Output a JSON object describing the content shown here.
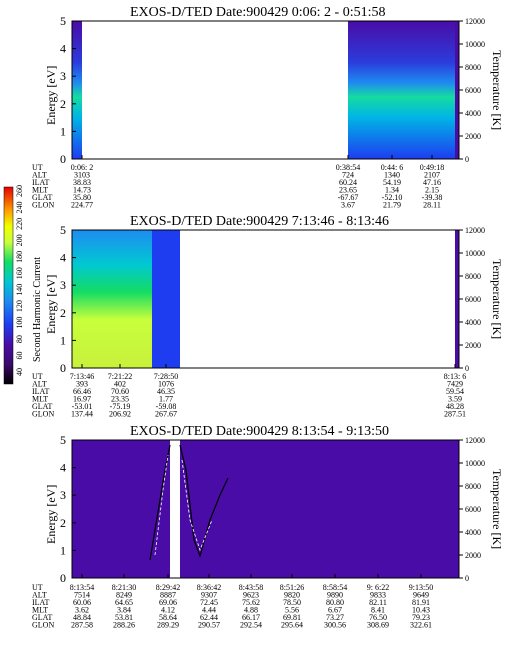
{
  "colors": {
    "background_purple": "#4a0ca6",
    "dark_purple": "#2b0a8c",
    "blue": "#1e3cf0",
    "cyan": "#00c8d2",
    "green": "#14dc64",
    "yellow_green": "#c8ff3c",
    "yellow": "#f0ff00"
  },
  "colorbar": {
    "label": "Second Harmonic Current",
    "ticks": [
      "40",
      "60",
      "80",
      "100",
      "120",
      "140",
      "160",
      "180",
      "200",
      "220",
      "240",
      "260"
    ]
  },
  "chart_data": [
    {
      "type": "heatmap",
      "title": "EXOS-D/TED   Date:900429   0:06: 2 - 0:51:58",
      "ylabel": "Energy [eV]",
      "ylim": [
        0,
        5
      ],
      "yticks": [
        "0",
        "1",
        "2",
        "3",
        "4",
        "5"
      ],
      "y2label": "Temperature [K]",
      "y2lim": [
        0,
        12000
      ],
      "y2ticks": [
        "0",
        "2000",
        "4000",
        "6000",
        "8000",
        "10000",
        "12000"
      ],
      "orbit_rows": [
        "UT",
        "ALT",
        "ILAT",
        "MLT",
        "GLAT",
        "GLON"
      ],
      "orbit_columns": [
        {
          "values": [
            "0:06: 2",
            "3103",
            "38.83",
            "14.73",
            "35.80",
            "224.77"
          ]
        },
        {
          "values": [
            "0:38:54",
            "724",
            "60.24",
            "23.65",
            "-67.67",
            "3.67"
          ]
        },
        {
          "values": [
            "0:44: 6",
            "1340",
            "54.19",
            "1.34",
            "-52.10",
            "21.79"
          ]
        },
        {
          "values": [
            "0:49:18",
            "2107",
            "47.16",
            "2.15",
            "-39.38",
            "28.11"
          ]
        }
      ]
    },
    {
      "type": "heatmap",
      "title": "EXOS-D/TED   Date:900429   7:13:46 - 8:13:46",
      "ylabel": "Energy [eV]",
      "ylim": [
        0,
        5
      ],
      "yticks": [
        "0",
        "1",
        "2",
        "3",
        "4",
        "5"
      ],
      "y2label": "Temperature [K]",
      "y2lim": [
        0,
        12000
      ],
      "y2ticks": [
        "0",
        "2000",
        "4000",
        "6000",
        "8000",
        "10000",
        "12000"
      ],
      "orbit_rows": [
        "UT",
        "ALT",
        "ILAT",
        "MLT",
        "GLAT",
        "GLON"
      ],
      "orbit_columns": [
        {
          "values": [
            "7:13:46",
            "393",
            "66.46",
            "16.97",
            "-53.01",
            "137.44"
          ]
        },
        {
          "values": [
            "7:21:22",
            "402",
            "70.60",
            "23.35",
            "-75.19",
            "206.92"
          ]
        },
        {
          "values": [
            "7:28:50",
            "1076",
            "46.35",
            "1.77",
            "-59.08",
            "267.67"
          ]
        },
        {
          "values": [
            "8:13: 6",
            "7429",
            "59.54",
            "3.59",
            "48.28",
            "287.51"
          ]
        }
      ]
    },
    {
      "type": "heatmap",
      "title": "EXOS-D/TED   Date:900429   8:13:54 - 9:13:50",
      "ylabel": "Energy [eV]",
      "ylim": [
        0,
        5
      ],
      "yticks": [
        "0",
        "1",
        "2",
        "3",
        "4",
        "5"
      ],
      "y2label": "Temperature [K]",
      "y2lim": [
        0,
        12000
      ],
      "y2ticks": [
        "0",
        "2000",
        "4000",
        "6000",
        "8000",
        "10000",
        "12000"
      ],
      "orbit_rows": [
        "UT",
        "ALT",
        "ILAT",
        "MLT",
        "GLAT",
        "GLON"
      ],
      "orbit_columns": [
        {
          "values": [
            "8:13:54",
            "7514",
            "60.06",
            "3.62",
            "48.84",
            "287.58"
          ]
        },
        {
          "values": [
            "8:21:30",
            "8249",
            "64.65",
            "3.84",
            "53.81",
            "288.26"
          ]
        },
        {
          "values": [
            "8:29:42",
            "8887",
            "69.06",
            "4.12",
            "58.64",
            "289.29"
          ]
        },
        {
          "values": [
            "8:36:42",
            "9307",
            "72.45",
            "4.44",
            "62.44",
            "290.57"
          ]
        },
        {
          "values": [
            "8:43:58",
            "9623",
            "75.62",
            "4.88",
            "66.17",
            "292.54"
          ]
        },
        {
          "values": [
            "8:51:26",
            "9820",
            "78.50",
            "5.56",
            "69.81",
            "295.64"
          ]
        },
        {
          "values": [
            "8:58:54",
            "9890",
            "80.80",
            "6.67",
            "73.27",
            "300.56"
          ]
        },
        {
          "values": [
            "9: 6:22",
            "9833",
            "82.11",
            "8.41",
            "76.50",
            "308.69"
          ]
        },
        {
          "values": [
            "9:13:50",
            "9649",
            "81.91",
            "10.43",
            "79.23",
            "322.61"
          ]
        }
      ]
    }
  ]
}
